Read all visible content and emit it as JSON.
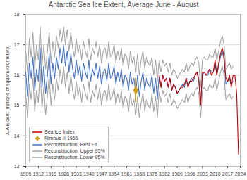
{
  "chart_data": {
    "type": "line",
    "title": "Antarctic Sea Ice Extent, Average June - August",
    "y_label": "JJA Extent (millions of square kilometers)",
    "xlim": [
      1905,
      2024
    ],
    "xticks": [
      1905,
      1912,
      1919,
      1926,
      1933,
      1940,
      1947,
      1954,
      1961,
      1968,
      1975,
      1982,
      1989,
      1996,
      2003,
      2010,
      2017,
      2024
    ],
    "ylim": [
      13,
      18
    ],
    "yticks": [
      13,
      14,
      15,
      16,
      17,
      18
    ],
    "grid": true,
    "legend": "lower left",
    "series": [
      {
        "name": "Sea Ice Index",
        "color": "#c00000",
        "type": "line",
        "x": [
          1979,
          1980,
          1981,
          1982,
          1983,
          1984,
          1985,
          1986,
          1987,
          1988,
          1989,
          1990,
          1991,
          1992,
          1993,
          1994,
          1995,
          1996,
          1997,
          1998,
          1999,
          2000,
          2001,
          2002,
          2003,
          2004,
          2005,
          2006,
          2007,
          2008,
          2009,
          2010,
          2011,
          2012,
          2013,
          2014,
          2015,
          2016,
          2017,
          2018,
          2019,
          2020,
          2021,
          2022,
          2023
        ],
        "values": [
          16.0,
          15.6,
          16.0,
          15.8,
          15.9,
          15.6,
          15.9,
          15.5,
          15.7,
          15.6,
          15.4,
          15.5,
          15.6,
          15.6,
          15.7,
          15.9,
          15.6,
          15.8,
          15.8,
          15.9,
          16.0,
          16.1,
          15.8,
          15.0,
          16.1,
          16.1,
          16.0,
          16.1,
          16.2,
          16.0,
          16.1,
          16.5,
          16.0,
          16.4,
          16.7,
          16.9,
          16.6,
          15.9,
          15.8,
          16.0,
          15.6,
          16.0,
          16.0,
          15.4,
          13.4
        ]
      },
      {
        "name": "Nimbus-II 1966",
        "color": "#d4a017",
        "type": "scatter",
        "marker": "diamond",
        "x": [
          1966
        ],
        "values": [
          15.5
        ],
        "error_low": [
          15.1
        ],
        "error_high": [
          15.9
        ]
      },
      {
        "name": "Reconstruction, Best Fit",
        "color": "#4472c4",
        "type": "line",
        "x": [
          1905,
          1906,
          1907,
          1908,
          1909,
          1910,
          1911,
          1912,
          1913,
          1914,
          1915,
          1916,
          1917,
          1918,
          1919,
          1920,
          1921,
          1922,
          1923,
          1924,
          1925,
          1926,
          1927,
          1928,
          1929,
          1930,
          1931,
          1932,
          1933,
          1934,
          1935,
          1936,
          1937,
          1938,
          1939,
          1940,
          1941,
          1942,
          1943,
          1944,
          1945,
          1946,
          1947,
          1948,
          1949,
          1950,
          1951,
          1952,
          1953,
          1954,
          1955,
          1956,
          1957,
          1958,
          1959,
          1960,
          1961,
          1962,
          1963,
          1964,
          1965,
          1966,
          1967,
          1968,
          1969,
          1970,
          1971,
          1972,
          1973,
          1974,
          1975,
          1976,
          1977,
          1978,
          1979,
          1980,
          1981,
          1982,
          1983,
          1984,
          1985,
          1986,
          1987,
          1988,
          1989,
          1990,
          1991,
          1992,
          1993,
          1994,
          1995,
          1996,
          1997,
          1998,
          1999,
          2000,
          2001,
          2002,
          2003,
          2004,
          2005,
          2006,
          2007,
          2008,
          2009,
          2010,
          2011,
          2012,
          2013,
          2014,
          2015,
          2016,
          2017,
          2018,
          2019,
          2020
        ],
        "values": [
          16.1,
          15.3,
          16.4,
          15.9,
          16.6,
          15.5,
          16.2,
          15.8,
          16.9,
          15.6,
          16.3,
          15.4,
          16.0,
          16.7,
          15.7,
          16.4,
          15.9,
          16.6,
          16.2,
          16.9,
          16.4,
          17.0,
          16.3,
          16.8,
          16.1,
          16.7,
          16.2,
          15.9,
          16.5,
          16.0,
          16.3,
          15.8,
          16.4,
          16.1,
          15.9,
          16.5,
          15.8,
          16.2,
          16.0,
          16.4,
          15.9,
          16.3,
          15.7,
          16.1,
          16.2,
          15.8,
          16.4,
          15.9,
          16.0,
          16.3,
          15.7,
          16.1,
          15.8,
          16.2,
          15.6,
          16.0,
          15.9,
          15.5,
          16.1,
          15.7,
          15.9,
          15.4,
          16.0,
          15.3,
          15.8,
          16.1,
          15.5,
          15.9,
          15.7,
          15.6,
          16.0,
          15.4,
          15.9,
          15.2,
          16.0,
          15.6,
          16.0,
          15.8,
          15.9,
          15.6,
          15.9,
          15.5,
          15.7,
          15.6,
          15.4,
          15.5,
          15.6,
          15.7,
          15.6,
          15.9,
          15.6,
          15.8,
          15.9,
          15.8,
          16.0,
          16.1,
          15.9,
          15.1,
          16.0,
          16.1,
          16.0,
          16.0,
          16.2,
          16.1,
          16.1,
          16.4,
          16.0,
          16.3,
          16.6,
          16.8,
          16.5,
          15.7,
          15.8,
          15.9,
          15.7,
          15.8
        ]
      },
      {
        "name": "Reconstruction, Upper 95%",
        "color": "#a6a6a6",
        "type": "line",
        "x": [
          1905,
          1906,
          1907,
          1908,
          1909,
          1910,
          1911,
          1912,
          1913,
          1914,
          1915,
          1916,
          1917,
          1918,
          1919,
          1920,
          1921,
          1922,
          1923,
          1924,
          1925,
          1926,
          1927,
          1928,
          1929,
          1930,
          1931,
          1932,
          1933,
          1934,
          1935,
          1936,
          1937,
          1938,
          1939,
          1940,
          1941,
          1942,
          1943,
          1944,
          1945,
          1946,
          1947,
          1948,
          1949,
          1950,
          1951,
          1952,
          1953,
          1954,
          1955,
          1956,
          1957,
          1958,
          1959,
          1960,
          1961,
          1962,
          1963,
          1964,
          1965,
          1966,
          1967,
          1968,
          1969,
          1970,
          1971,
          1972,
          1973,
          1974,
          1975,
          1976,
          1977,
          1978,
          1979,
          1980,
          1981,
          1982,
          1983,
          1984,
          1985,
          1986,
          1987,
          1988,
          1989,
          1990,
          1991,
          1992,
          1993,
          1994,
          1995,
          1996,
          1997,
          1998,
          1999,
          2000,
          2001,
          2002,
          2003,
          2004,
          2005,
          2006,
          2007,
          2008,
          2009,
          2010,
          2011,
          2012,
          2013,
          2014,
          2015,
          2016,
          2017,
          2018,
          2019,
          2020
        ],
        "values": [
          16.8,
          16.1,
          17.2,
          16.6,
          17.4,
          16.2,
          17.0,
          16.5,
          17.6,
          16.3,
          17.0,
          16.2,
          16.8,
          17.4,
          16.4,
          17.1,
          16.6,
          17.3,
          16.9,
          17.5,
          17.1,
          17.6,
          17.0,
          17.5,
          16.8,
          17.4,
          16.9,
          16.6,
          17.2,
          16.7,
          17.0,
          16.5,
          17.1,
          16.8,
          16.6,
          17.2,
          16.5,
          16.9,
          16.7,
          17.1,
          16.6,
          17.0,
          16.4,
          16.8,
          16.9,
          16.5,
          17.1,
          16.6,
          16.7,
          17.0,
          16.4,
          16.8,
          16.5,
          16.9,
          16.3,
          16.7,
          16.6,
          16.2,
          16.8,
          16.4,
          16.6,
          16.1,
          16.7,
          16.0,
          16.5,
          16.8,
          16.2,
          16.6,
          16.4,
          16.3,
          16.6,
          16.0,
          16.5,
          15.8,
          16.5,
          16.1,
          16.5,
          16.3,
          16.4,
          16.1,
          16.4,
          16.0,
          16.2,
          16.1,
          15.9,
          16.0,
          16.1,
          16.2,
          16.1,
          16.4,
          16.1,
          16.3,
          16.4,
          16.3,
          16.5,
          16.6,
          16.4,
          15.6,
          16.5,
          16.6,
          16.5,
          16.5,
          16.7,
          16.6,
          16.6,
          16.9,
          16.5,
          16.8,
          17.1,
          17.3,
          17.0,
          16.2,
          16.3,
          16.4,
          16.2,
          16.3
        ]
      },
      {
        "name": "Reconstruction, Lower 95%",
        "color": "#a6a6a6",
        "type": "line",
        "x": [
          1905,
          1906,
          1907,
          1908,
          1909,
          1910,
          1911,
          1912,
          1913,
          1914,
          1915,
          1916,
          1917,
          1918,
          1919,
          1920,
          1921,
          1922,
          1923,
          1924,
          1925,
          1926,
          1927,
          1928,
          1929,
          1930,
          1931,
          1932,
          1933,
          1934,
          1935,
          1936,
          1937,
          1938,
          1939,
          1940,
          1941,
          1942,
          1943,
          1944,
          1945,
          1946,
          1947,
          1948,
          1949,
          1950,
          1951,
          1952,
          1953,
          1954,
          1955,
          1956,
          1957,
          1958,
          1959,
          1960,
          1961,
          1962,
          1963,
          1964,
          1965,
          1966,
          1967,
          1968,
          1969,
          1970,
          1971,
          1972,
          1973,
          1974,
          1975,
          1976,
          1977,
          1978,
          1979,
          1980,
          1981,
          1982,
          1983,
          1984,
          1985,
          1986,
          1987,
          1988,
          1989,
          1990,
          1991,
          1992,
          1993,
          1994,
          1995,
          1996,
          1997,
          1998,
          1999,
          2000,
          2001,
          2002,
          2003,
          2004,
          2005,
          2006,
          2007,
          2008,
          2009,
          2010,
          2011,
          2012,
          2013,
          2014,
          2015,
          2016,
          2017,
          2018,
          2019,
          2020
        ],
        "values": [
          15.4,
          14.6,
          15.7,
          15.2,
          15.9,
          14.8,
          15.5,
          15.1,
          16.2,
          14.9,
          15.6,
          14.7,
          15.3,
          16.0,
          15.0,
          15.7,
          15.2,
          15.9,
          15.5,
          16.2,
          15.7,
          16.3,
          15.6,
          16.1,
          15.4,
          16.0,
          15.5,
          15.2,
          15.8,
          15.3,
          15.6,
          15.1,
          15.7,
          15.4,
          15.2,
          15.8,
          15.1,
          15.5,
          15.3,
          15.7,
          15.2,
          15.6,
          15.0,
          15.4,
          15.5,
          15.1,
          15.7,
          15.2,
          15.3,
          15.6,
          15.0,
          15.4,
          15.1,
          15.5,
          14.9,
          15.3,
          15.2,
          14.8,
          15.4,
          15.0,
          15.2,
          14.7,
          15.3,
          14.6,
          15.1,
          15.4,
          14.8,
          15.2,
          15.0,
          14.9,
          15.4,
          14.8,
          15.3,
          14.6,
          15.5,
          15.1,
          15.5,
          15.3,
          15.4,
          15.1,
          15.4,
          15.0,
          15.2,
          15.1,
          14.9,
          15.0,
          15.1,
          15.2,
          15.1,
          15.4,
          15.1,
          15.3,
          15.4,
          15.3,
          15.5,
          15.6,
          15.4,
          14.6,
          15.5,
          15.6,
          15.5,
          15.5,
          15.7,
          15.6,
          15.6,
          15.9,
          15.5,
          15.8,
          16.1,
          16.3,
          16.0,
          15.2,
          15.3,
          15.4,
          15.2,
          15.3
        ]
      }
    ]
  }
}
